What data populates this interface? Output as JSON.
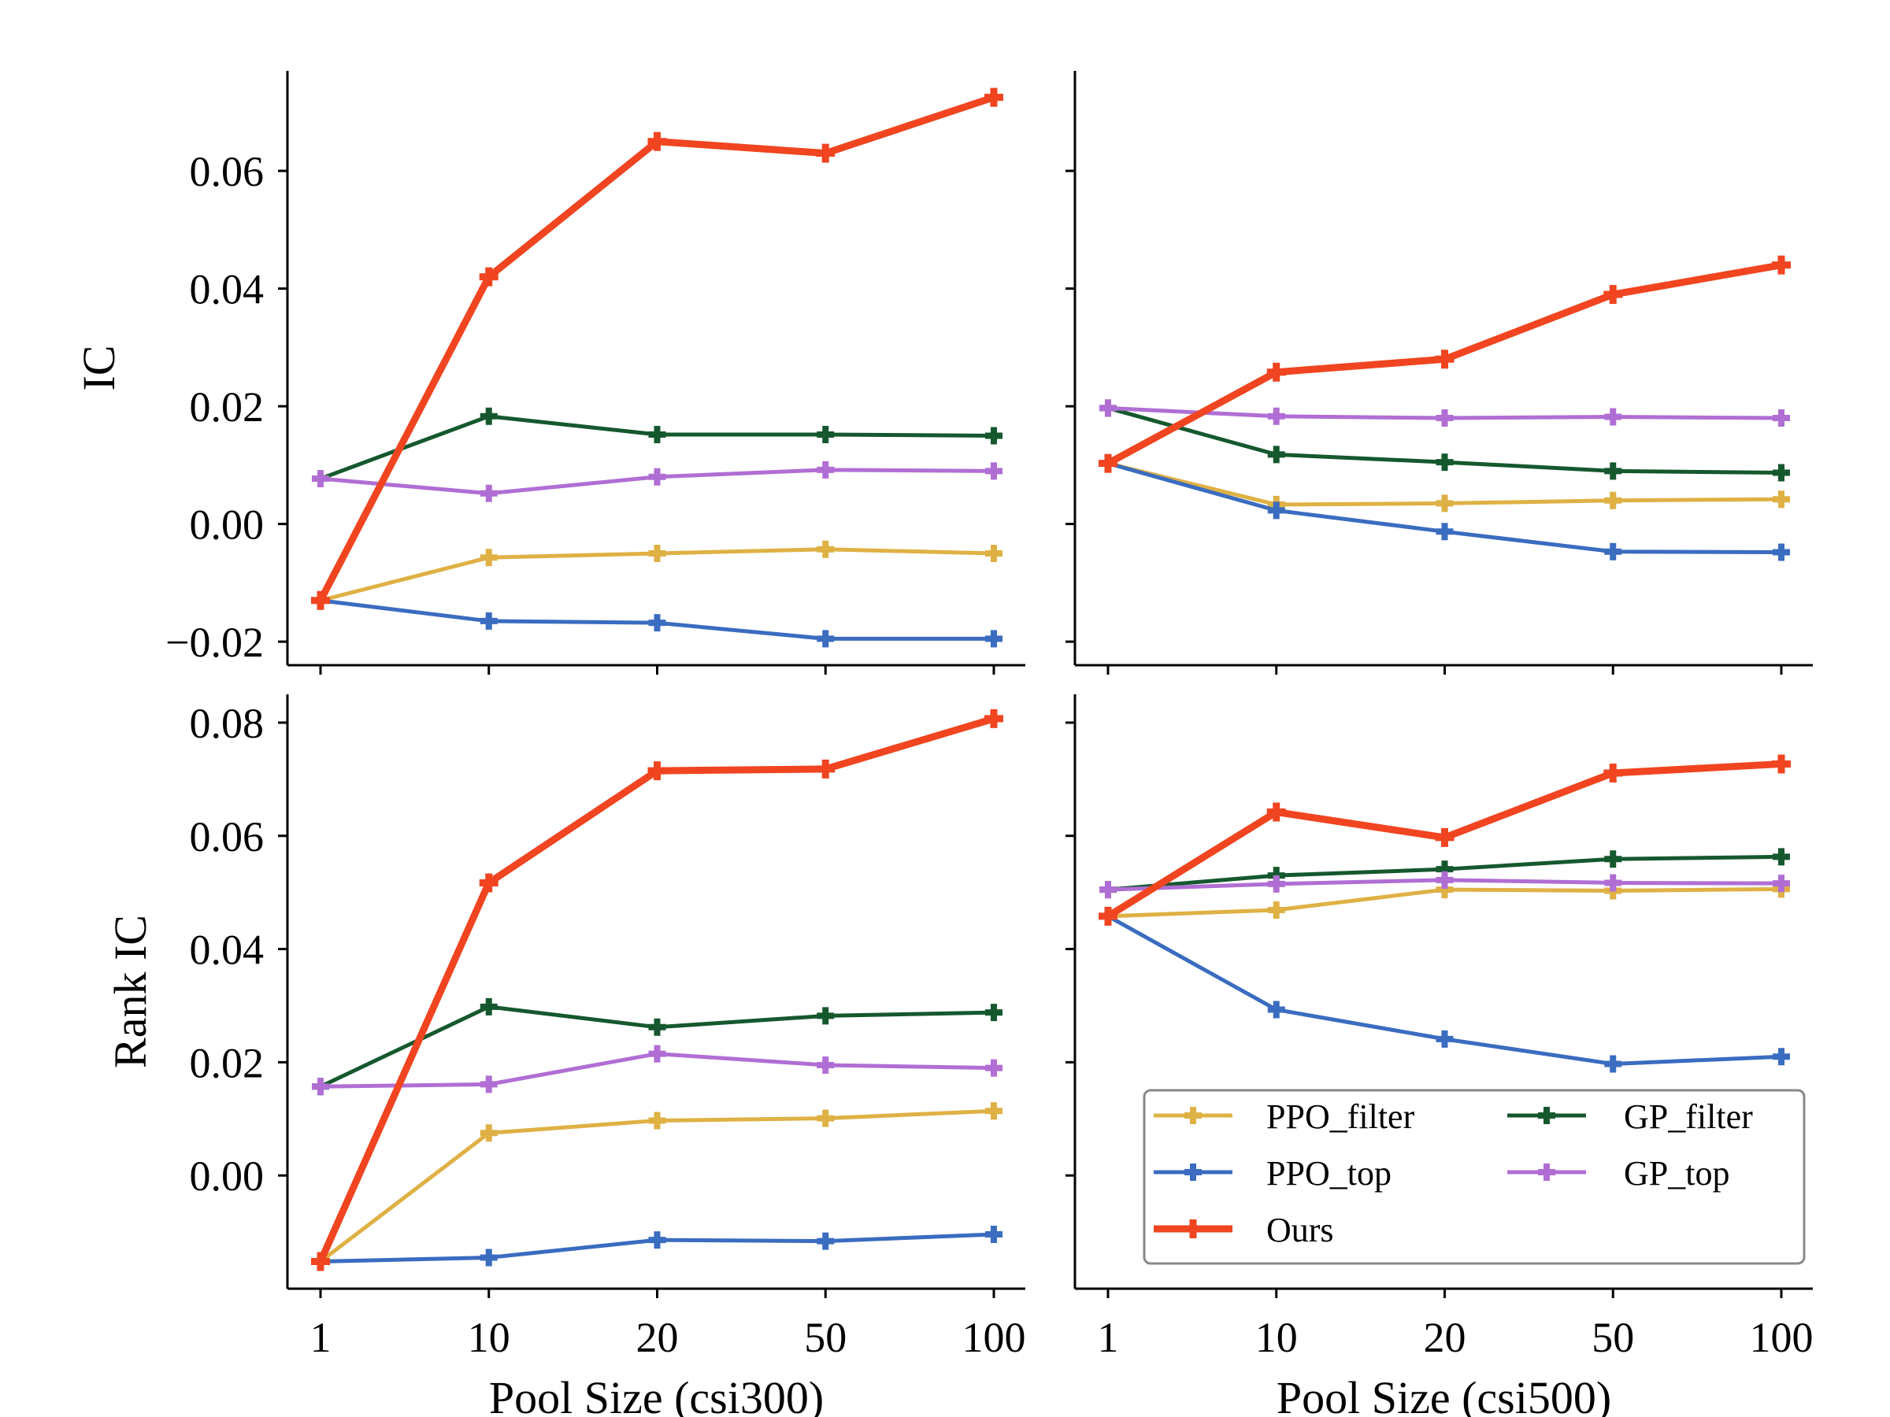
{
  "chart_data": [
    {
      "type": "line",
      "panel": "top-left",
      "categories": [
        "1",
        "10",
        "20",
        "50",
        "100"
      ],
      "ylabel": "IC",
      "xlabel": "",
      "ylim": [
        -0.024,
        0.077
      ],
      "yticks": [
        -0.02,
        0.0,
        0.02,
        0.04,
        0.06
      ],
      "ytick_labels": [
        "−0.02",
        "0.00",
        "0.02",
        "0.04",
        "0.06"
      ],
      "show_x_tick_labels": false,
      "show_y_tick_labels": true,
      "series": [
        {
          "name": "PPO_filter",
          "values": [
            -0.013,
            -0.0057,
            -0.005,
            -0.0043,
            -0.005
          ]
        },
        {
          "name": "PPO_top",
          "values": [
            -0.013,
            -0.0165,
            -0.0168,
            -0.0195,
            -0.0195
          ]
        },
        {
          "name": "GP_filter",
          "values": [
            0.0077,
            0.0183,
            0.0152,
            0.0152,
            0.015
          ]
        },
        {
          "name": "GP_top",
          "values": [
            0.0077,
            0.0052,
            0.008,
            0.0092,
            0.009
          ]
        },
        {
          "name": "Ours",
          "values": [
            -0.013,
            0.042,
            0.065,
            0.063,
            0.0725
          ]
        }
      ]
    },
    {
      "type": "line",
      "panel": "top-right",
      "categories": [
        "1",
        "10",
        "20",
        "50",
        "100"
      ],
      "ylabel": "",
      "xlabel": "",
      "ylim": [
        -0.024,
        0.077
      ],
      "yticks": [
        -0.02,
        0.0,
        0.02,
        0.04,
        0.06
      ],
      "show_x_tick_labels": false,
      "show_y_tick_labels": false,
      "series": [
        {
          "name": "PPO_filter",
          "values": [
            0.0103,
            0.0033,
            0.0035,
            0.004,
            0.0042
          ]
        },
        {
          "name": "PPO_top",
          "values": [
            0.0103,
            0.0023,
            -0.0013,
            -0.0047,
            -0.0048
          ]
        },
        {
          "name": "GP_filter",
          "values": [
            0.0197,
            0.0118,
            0.0105,
            0.009,
            0.0087
          ]
        },
        {
          "name": "GP_top",
          "values": [
            0.0197,
            0.0183,
            0.018,
            0.0182,
            0.018
          ]
        },
        {
          "name": "Ours",
          "values": [
            0.0103,
            0.0258,
            0.028,
            0.039,
            0.044
          ]
        }
      ]
    },
    {
      "type": "line",
      "panel": "bottom-left",
      "categories": [
        "1",
        "10",
        "20",
        "50",
        "100"
      ],
      "ylabel": "Rank IC",
      "xlabel": "Pool Size (csi300)",
      "ylim": [
        -0.02,
        0.085
      ],
      "yticks": [
        0.0,
        0.02,
        0.04,
        0.06,
        0.08
      ],
      "ytick_labels": [
        "0.00",
        "0.02",
        "0.04",
        "0.06",
        "0.08"
      ],
      "show_x_tick_labels": true,
      "show_y_tick_labels": true,
      "series": [
        {
          "name": "PPO_filter",
          "values": [
            -0.0152,
            0.0075,
            0.0097,
            0.0101,
            0.0114
          ]
        },
        {
          "name": "PPO_top",
          "values": [
            -0.0152,
            -0.0145,
            -0.0114,
            -0.0116,
            -0.0104
          ]
        },
        {
          "name": "GP_filter",
          "values": [
            0.0157,
            0.0298,
            0.0262,
            0.0282,
            0.0288
          ]
        },
        {
          "name": "GP_top",
          "values": [
            0.0157,
            0.0161,
            0.0215,
            0.0195,
            0.019
          ]
        },
        {
          "name": "Ours",
          "values": [
            -0.0152,
            0.0517,
            0.0715,
            0.0718,
            0.0807
          ]
        }
      ]
    },
    {
      "type": "line",
      "panel": "bottom-right",
      "categories": [
        "1",
        "10",
        "20",
        "50",
        "100"
      ],
      "ylabel": "",
      "xlabel": "Pool Size (csi500)",
      "ylim": [
        -0.02,
        0.085
      ],
      "yticks": [
        0.0,
        0.02,
        0.04,
        0.06,
        0.08
      ],
      "show_x_tick_labels": true,
      "show_y_tick_labels": false,
      "series": [
        {
          "name": "PPO_filter",
          "values": [
            0.0458,
            0.0469,
            0.0505,
            0.0503,
            0.0506
          ]
        },
        {
          "name": "PPO_top",
          "values": [
            0.0458,
            0.0293,
            0.0241,
            0.0197,
            0.021
          ]
        },
        {
          "name": "GP_filter",
          "values": [
            0.0505,
            0.053,
            0.0541,
            0.0559,
            0.0563
          ]
        },
        {
          "name": "GP_top",
          "values": [
            0.0505,
            0.0515,
            0.0522,
            0.0517,
            0.0516
          ]
        },
        {
          "name": "Ours",
          "values": [
            0.0458,
            0.0642,
            0.0597,
            0.0711,
            0.0727
          ]
        }
      ]
    }
  ],
  "legend": {
    "position": "bottom-right panel, lower-right",
    "entries": [
      "PPO_filter",
      "GP_filter",
      "PPO_top",
      "GP_top",
      "Ours"
    ]
  },
  "colors": {
    "PPO_filter": "#dfb144",
    "PPO_top": "#3a6cc0",
    "GP_filter": "#15582e",
    "GP_top": "#b06ed4",
    "Ours": "#f04520"
  }
}
